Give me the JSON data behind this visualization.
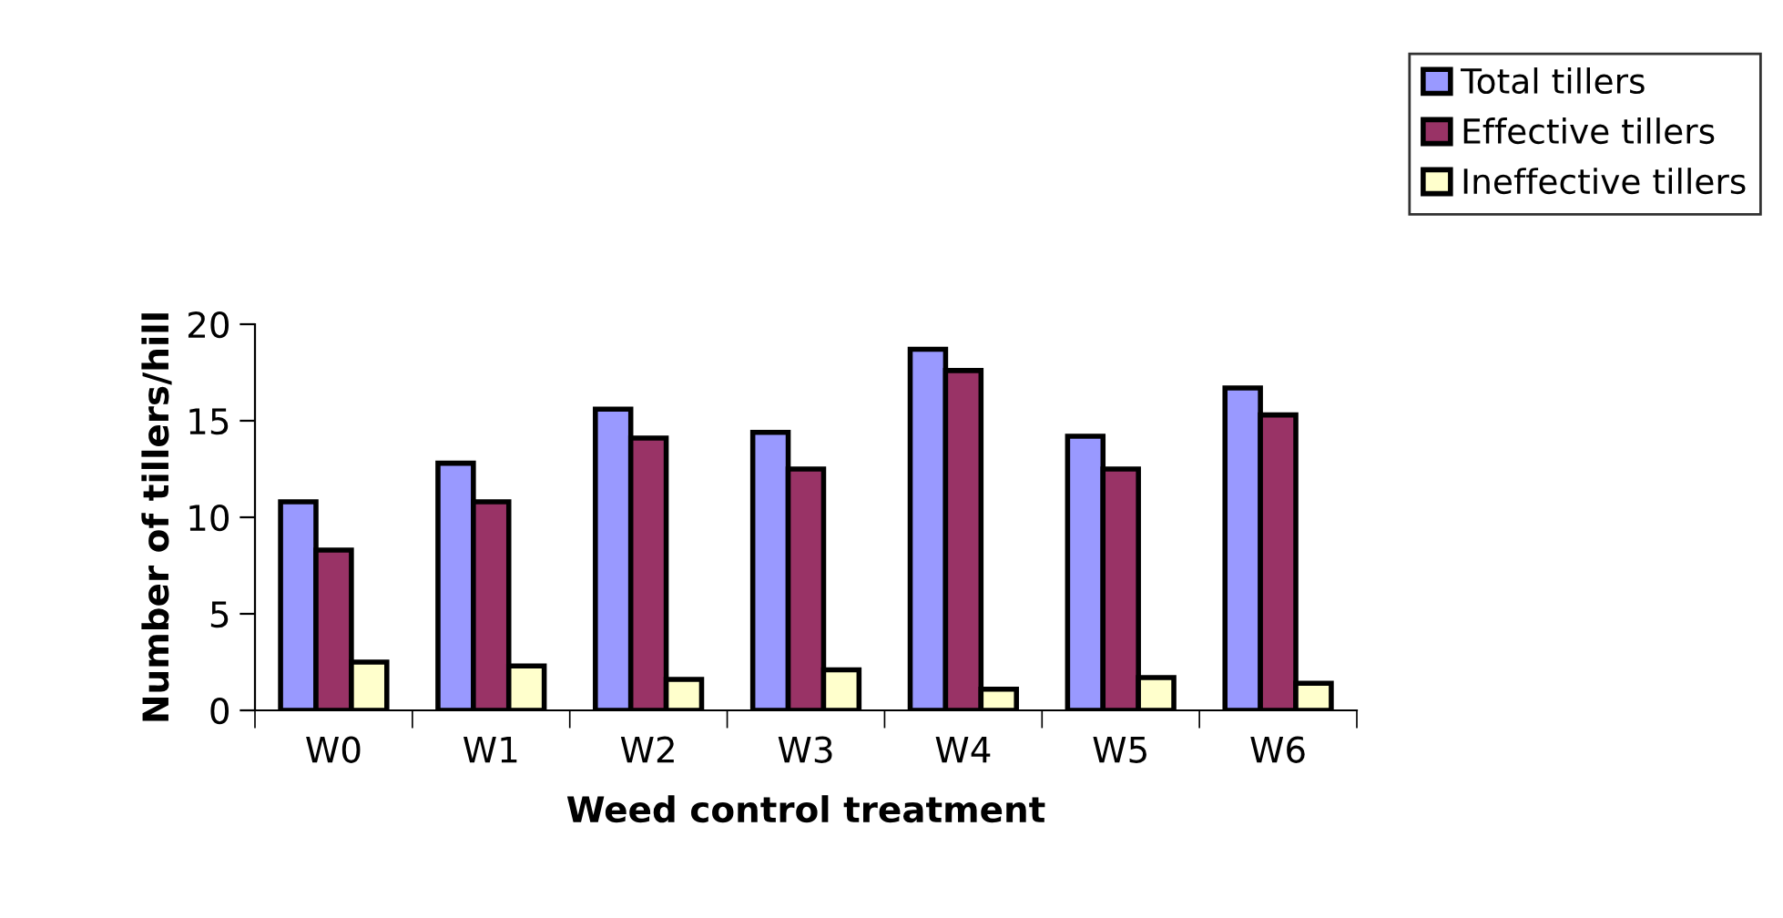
{
  "chart_data": {
    "type": "bar",
    "xlabel": "Weed control treatment",
    "ylabel": "Number of tillers/hill",
    "categories": [
      "W0",
      "W1",
      "W2",
      "W3",
      "W4",
      "W5",
      "W6"
    ],
    "series": [
      {
        "name": "Total tillers",
        "color": "#9999ff",
        "values": [
          10.8,
          12.8,
          15.6,
          14.4,
          18.7,
          14.2,
          16.7
        ]
      },
      {
        "name": "Effective tillers",
        "color": "#993366",
        "values": [
          8.3,
          10.8,
          14.1,
          12.5,
          17.6,
          12.5,
          15.3
        ]
      },
      {
        "name": "Ineffective tillers",
        "color": "#ffffcc",
        "values": [
          2.5,
          2.3,
          1.6,
          2.1,
          1.1,
          1.7,
          1.4
        ]
      }
    ],
    "ylim": [
      0,
      20
    ],
    "yticks": [
      0,
      5,
      10,
      15,
      20
    ],
    "grid": false,
    "legend": "top right"
  }
}
